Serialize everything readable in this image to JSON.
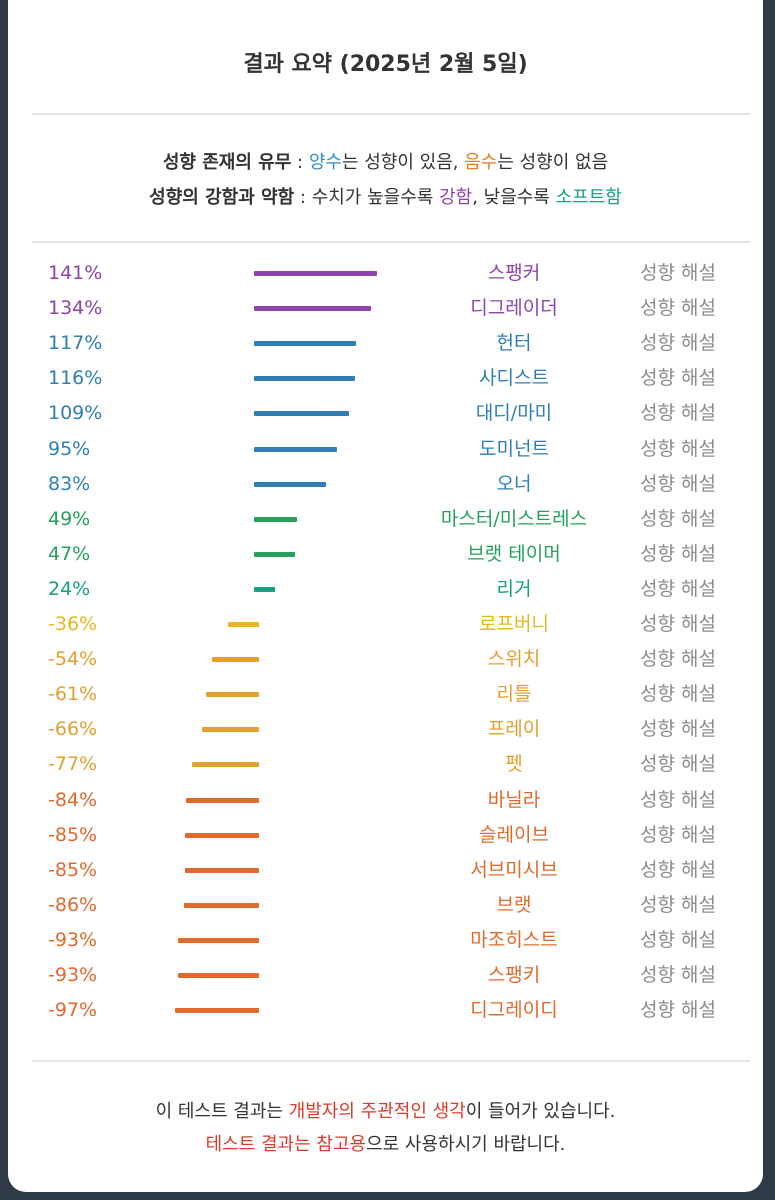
{
  "title": "결과 요약 (2025년 2월 5일)",
  "legend": {
    "line1": {
      "label": "성향 존재의 유무",
      "sep": " : ",
      "positive_word": "양수",
      "positive_rest": "는 성향이 있음, ",
      "negative_word": "음수",
      "negative_rest": "는 성향이 없음"
    },
    "line2": {
      "label": "성향의 강함과 약함",
      "sep": " : ",
      "pre": "수치가 높을수록 ",
      "strong_word": "강함",
      "mid": ", 낮을수록 ",
      "soft_word": "소프트함"
    }
  },
  "colors": {
    "purple": "#8e44ad",
    "blue": "#2f7fb5",
    "green": "#27a05c",
    "teal": "#16a085",
    "yellow": "#e8b720",
    "amber": "#e3a02f",
    "orange": "#e06a2c",
    "positive_word": "#2f8fd0",
    "negative_word": "#e67e22",
    "strong_word": "#8e44ad",
    "soft_word": "#16a085",
    "footer_red": "#d93a2b"
  },
  "link_label": "성향 해설",
  "chart_data": {
    "type": "bar",
    "orientation": "horizontal",
    "unit": "%",
    "categories": [
      "스팽커",
      "디그레이더",
      "헌터",
      "사디스트",
      "대디/마미",
      "도미넌트",
      "오너",
      "마스터/미스트레스",
      "브랫 테이머",
      "리거",
      "로프버니",
      "스위치",
      "리틀",
      "프레이",
      "펫",
      "바닐라",
      "슬레이브",
      "서브미시브",
      "브랫",
      "마조히스트",
      "스팽키",
      "디그레이디"
    ],
    "values": [
      141,
      134,
      117,
      116,
      109,
      95,
      83,
      49,
      47,
      24,
      -36,
      -54,
      -61,
      -66,
      -77,
      -84,
      -85,
      -85,
      -86,
      -93,
      -93,
      -97
    ],
    "labels": [
      "141%",
      "134%",
      "117%",
      "116%",
      "109%",
      "95%",
      "83%",
      "49%",
      "47%",
      "24%",
      "-36%",
      "-54%",
      "-61%",
      "-66%",
      "-77%",
      "-84%",
      "-85%",
      "-85%",
      "-86%",
      "-93%",
      "-93%",
      "-97%"
    ],
    "colors": [
      "purple",
      "purple",
      "blue",
      "blue",
      "blue",
      "blue",
      "blue",
      "green",
      "green",
      "teal",
      "yellow",
      "amber",
      "amber",
      "amber",
      "amber",
      "orange",
      "orange",
      "orange",
      "orange",
      "orange",
      "orange",
      "orange"
    ],
    "title": "",
    "xlabel": "",
    "ylabel": "",
    "grid": false
  },
  "footer": {
    "line1_pre": "이 테스트 결과는 ",
    "line1_red": "개발자의 주관적인 생각",
    "line1_post": "이 들어가 있습니다.",
    "line2_red": "테스트 결과는 참고용",
    "line2_post": "으로 사용하시기 바랍니다."
  }
}
